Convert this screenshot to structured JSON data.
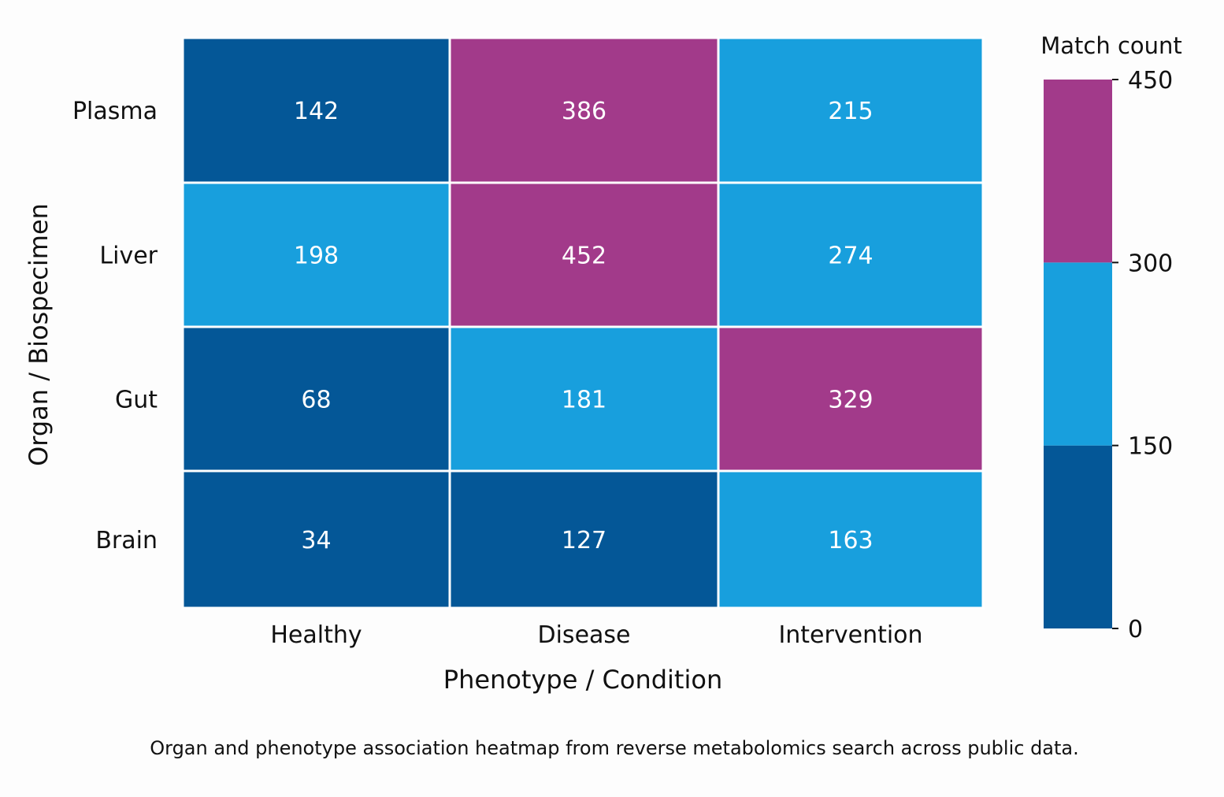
{
  "chart_data": {
    "type": "heatmap",
    "xlabel": "Phenotype / Condition",
    "ylabel": "Organ / Biospecimen",
    "columns": [
      "Healthy",
      "Disease",
      "Intervention"
    ],
    "rows": [
      "Plasma",
      "Liver",
      "Gut",
      "Brain"
    ],
    "values": [
      [
        142,
        386,
        215
      ],
      [
        198,
        452,
        274
      ],
      [
        68,
        181,
        329
      ],
      [
        34,
        127,
        163
      ]
    ],
    "colorbar": {
      "title": "Match count",
      "range": [
        0,
        450
      ],
      "ticks": [
        0,
        150,
        300,
        450
      ],
      "bins": [
        {
          "from": 0,
          "to": 150,
          "color": "#045797"
        },
        {
          "from": 150,
          "to": 300,
          "color": "#189fdd"
        },
        {
          "from": 300,
          "to": 450,
          "color": "#a23a8a"
        }
      ]
    },
    "caption": "Organ and phenotype association heatmap from reverse metabolomics search across public data."
  }
}
